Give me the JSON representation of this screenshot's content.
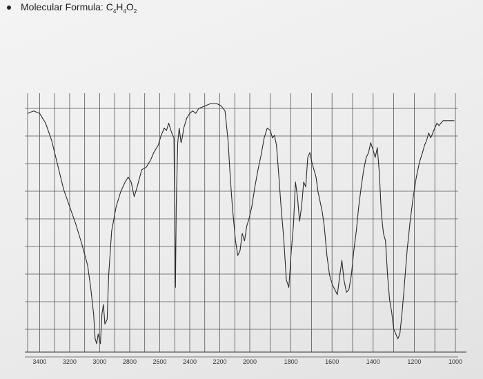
{
  "header": {
    "label": "Molecular Formula: ",
    "formula_parts": [
      {
        "text": "C",
        "sub": false
      },
      {
        "text": "4",
        "sub": true
      },
      {
        "text": "H",
        "sub": false
      },
      {
        "text": "4",
        "sub": true
      },
      {
        "text": "O",
        "sub": false
      },
      {
        "text": "2",
        "sub": true
      }
    ]
  },
  "chart_data": {
    "type": "line",
    "title": "",
    "xlabel": "",
    "ylabel": "",
    "x_axis_reversed": true,
    "grid": true,
    "xtick_labels": [
      {
        "label": "3400",
        "value": 3400
      },
      {
        "label": "3200",
        "value": 3200
      },
      {
        "label": "3000",
        "value": 3000
      },
      {
        "label": "2800",
        "value": 2800
      },
      {
        "label": "2600",
        "value": 2600
      },
      {
        "label": "2400",
        "value": 2400
      },
      {
        "label": "2200",
        "value": 2200
      },
      {
        "label": "2000",
        "value": 2000
      },
      {
        "label": "1800",
        "value": 1800
      },
      {
        "label": "1600",
        "value": 1600
      },
      {
        "label": "1400",
        "value": 1400
      },
      {
        "label": "1200",
        "value": 1200
      },
      {
        "label": "1000",
        "value": 1000
      }
    ],
    "series": [
      {
        "values": [
          [
            3480,
            96
          ],
          [
            3440,
            97
          ],
          [
            3400,
            96
          ],
          [
            3360,
            92
          ],
          [
            3320,
            85
          ],
          [
            3280,
            75
          ],
          [
            3240,
            65
          ],
          [
            3200,
            58
          ],
          [
            3160,
            51
          ],
          [
            3120,
            43
          ],
          [
            3080,
            34
          ],
          [
            3060,
            25
          ],
          [
            3040,
            14
          ],
          [
            3030,
            4
          ],
          [
            3020,
            2
          ],
          [
            3010,
            6
          ],
          [
            3000,
            3
          ],
          [
            2995,
            2
          ],
          [
            2985,
            14
          ],
          [
            2975,
            18
          ],
          [
            2965,
            10
          ],
          [
            2950,
            12
          ],
          [
            2940,
            30
          ],
          [
            2920,
            48
          ],
          [
            2890,
            58
          ],
          [
            2860,
            64
          ],
          [
            2830,
            68
          ],
          [
            2810,
            70
          ],
          [
            2790,
            68
          ],
          [
            2770,
            62
          ],
          [
            2750,
            66
          ],
          [
            2720,
            73
          ],
          [
            2690,
            74
          ],
          [
            2660,
            77
          ],
          [
            2640,
            80
          ],
          [
            2610,
            83
          ],
          [
            2590,
            87
          ],
          [
            2570,
            90
          ],
          [
            2555,
            89
          ],
          [
            2540,
            92
          ],
          [
            2520,
            88
          ],
          [
            2505,
            86
          ],
          [
            2495,
            25
          ],
          [
            2490,
            58
          ],
          [
            2480,
            84
          ],
          [
            2470,
            90
          ],
          [
            2458,
            84
          ],
          [
            2450,
            86
          ],
          [
            2440,
            90
          ],
          [
            2420,
            94
          ],
          [
            2400,
            96
          ],
          [
            2380,
            97
          ],
          [
            2360,
            96
          ],
          [
            2340,
            98
          ],
          [
            2300,
            99
          ],
          [
            2260,
            100
          ],
          [
            2220,
            100
          ],
          [
            2190,
            99
          ],
          [
            2165,
            97
          ],
          [
            2145,
            85
          ],
          [
            2130,
            70
          ],
          [
            2115,
            57
          ],
          [
            2095,
            44
          ],
          [
            2080,
            38
          ],
          [
            2065,
            40
          ],
          [
            2050,
            47
          ],
          [
            2035,
            44
          ],
          [
            2020,
            50
          ],
          [
            2005,
            53
          ],
          [
            1990,
            58
          ],
          [
            1975,
            66
          ],
          [
            1960,
            73
          ],
          [
            1945,
            79
          ],
          [
            1930,
            86
          ],
          [
            1915,
            90
          ],
          [
            1900,
            89
          ],
          [
            1890,
            86
          ],
          [
            1880,
            87
          ],
          [
            1870,
            83
          ],
          [
            1860,
            72
          ],
          [
            1848,
            58
          ],
          [
            1835,
            45
          ],
          [
            1822,
            28
          ],
          [
            1810,
            25
          ],
          [
            1798,
            40
          ],
          [
            1788,
            50
          ],
          [
            1778,
            68
          ],
          [
            1768,
            62
          ],
          [
            1758,
            52
          ],
          [
            1748,
            58
          ],
          [
            1738,
            68
          ],
          [
            1728,
            66
          ],
          [
            1718,
            78
          ],
          [
            1708,
            80
          ],
          [
            1698,
            76
          ],
          [
            1688,
            73
          ],
          [
            1678,
            70
          ],
          [
            1668,
            64
          ],
          [
            1658,
            60
          ],
          [
            1648,
            56
          ],
          [
            1638,
            50
          ],
          [
            1625,
            38
          ],
          [
            1612,
            30
          ],
          [
            1598,
            26
          ],
          [
            1586,
            24
          ],
          [
            1574,
            22
          ],
          [
            1562,
            30
          ],
          [
            1552,
            36
          ],
          [
            1542,
            28
          ],
          [
            1530,
            23
          ],
          [
            1518,
            24
          ],
          [
            1506,
            30
          ],
          [
            1494,
            40
          ],
          [
            1482,
            48
          ],
          [
            1470,
            58
          ],
          [
            1458,
            66
          ],
          [
            1446,
            73
          ],
          [
            1434,
            78
          ],
          [
            1422,
            80
          ],
          [
            1412,
            84
          ],
          [
            1400,
            81
          ],
          [
            1390,
            78
          ],
          [
            1380,
            82
          ],
          [
            1370,
            72
          ],
          [
            1360,
            55
          ],
          [
            1350,
            47
          ],
          [
            1340,
            44
          ],
          [
            1330,
            30
          ],
          [
            1320,
            20
          ],
          [
            1310,
            15
          ],
          [
            1300,
            8
          ],
          [
            1290,
            6
          ],
          [
            1280,
            4
          ],
          [
            1270,
            6
          ],
          [
            1260,
            14
          ],
          [
            1250,
            24
          ],
          [
            1235,
            40
          ],
          [
            1220,
            52
          ],
          [
            1205,
            62
          ],
          [
            1190,
            70
          ],
          [
            1175,
            76
          ],
          [
            1160,
            80
          ],
          [
            1150,
            83
          ],
          [
            1140,
            85
          ],
          [
            1130,
            88
          ],
          [
            1120,
            86
          ],
          [
            1110,
            88
          ],
          [
            1100,
            90
          ],
          [
            1090,
            92
          ],
          [
            1080,
            91
          ],
          [
            1070,
            92
          ],
          [
            1060,
            93
          ],
          [
            1050,
            93
          ],
          [
            1040,
            93
          ],
          [
            1030,
            93
          ],
          [
            1015,
            93
          ],
          [
            1005,
            93
          ]
        ]
      }
    ]
  }
}
